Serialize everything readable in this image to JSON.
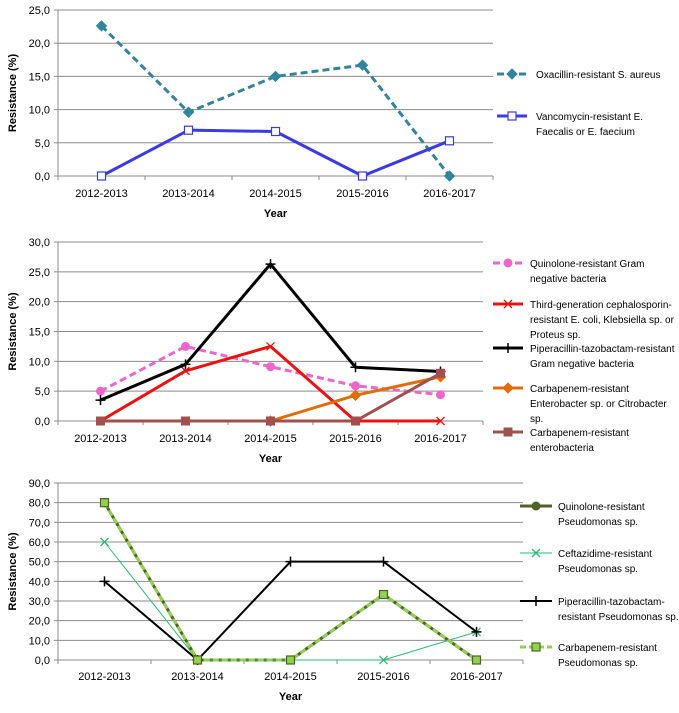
{
  "chart_data": [
    {
      "type": "line",
      "xlabel": "Year",
      "ylabel": "Resistance (%)",
      "ylim": [
        0,
        25
      ],
      "ytick_step": 5,
      "categories": [
        "2012-2013",
        "2013-2014",
        "2014-2015",
        "2015-2016",
        "2016-2017"
      ],
      "grid": true,
      "legend": "right",
      "series": [
        {
          "name": "Oxacillin-resistant S. aureus",
          "legend_lines": [
            "Oxacillin-resistant S. aureus"
          ],
          "values": [
            22.6,
            9.6,
            15.0,
            16.7,
            0.0
          ],
          "color": "#31849B",
          "dash": "7,4",
          "width": 3,
          "marker": "diamond"
        },
        {
          "name": "Vancomycin-resistant E. Faecalis or E. faecium",
          "legend_lines": [
            "Vancomycin-resistant E.",
            "Faecalis or E. faecium"
          ],
          "values": [
            0.0,
            6.9,
            6.7,
            0.0,
            5.3
          ],
          "color": "#3A3AE6",
          "dash": "",
          "width": 3,
          "marker": "square-open"
        }
      ]
    },
    {
      "type": "line",
      "xlabel": "Year",
      "ylabel": "Resistance (%)",
      "ylim": [
        0,
        30
      ],
      "ytick_step": 5,
      "categories": [
        "2012-2013",
        "2013-2014",
        "2014-2015",
        "2015-2016",
        "2016-2017"
      ],
      "grid": true,
      "legend": "right",
      "series": [
        {
          "name": "Quinolone-resistant Gram negative bacteria",
          "legend_lines": [
            "Quinolone-resistant Gram",
            "negative bacteria"
          ],
          "values": [
            5.0,
            12.5,
            9.1,
            5.9,
            4.4
          ],
          "color": "#EE66CC",
          "dash": "7,4",
          "width": 3,
          "marker": "circle"
        },
        {
          "name": "Third-generation cephalosporin-resistant E. coli, Klebsiella sp. or Proteus sp.",
          "legend_lines": [
            "Third-generation cephalosporin-",
            "resistant E. coli, Klebsiella sp. or",
            "Proteus sp."
          ],
          "values": [
            0.0,
            8.4,
            12.5,
            0.0,
            0.0
          ],
          "color": "#EE1111",
          "dash": "",
          "width": 3,
          "marker": "x"
        },
        {
          "name": "Piperacillin-tazobactam-resistant Gram negative bacteria",
          "legend_lines": [
            "Piperacillin-tazobactam-resistant",
            "Gram negative bacteria"
          ],
          "values": [
            3.5,
            9.5,
            26.3,
            9.0,
            8.3
          ],
          "color": "#000000",
          "dash": "",
          "width": 3,
          "marker": "plus"
        },
        {
          "name": "Carbapenem-resistant Enterobacter sp. or Citrobacter sp.",
          "legend_lines": [
            "Carbapenem-resistant",
            "Enterobacter sp. or Citrobacter",
            "sp."
          ],
          "values": [
            null,
            null,
            0.0,
            4.3,
            7.4
          ],
          "color": "#E36C0A",
          "dash": "",
          "width": 3,
          "marker": "diamond"
        },
        {
          "name": "Carbapenem-resistant enterobacteria",
          "legend_lines": [
            "Carbapenem-resistant",
            "enterobacteria"
          ],
          "values": [
            0.0,
            0.0,
            0.0,
            0.0,
            8.0
          ],
          "color": "#A0504D",
          "dash": "",
          "width": 3,
          "marker": "square"
        }
      ]
    },
    {
      "type": "line",
      "xlabel": "Year",
      "ylabel": "Resistance (%)",
      "ylim": [
        0,
        90
      ],
      "ytick_step": 10,
      "categories": [
        "2012-2013",
        "2013-2014",
        "2014-2015",
        "2015-2016",
        "2016-2017"
      ],
      "grid": true,
      "legend": "right",
      "series": [
        {
          "name": "Quinolone-resistant Pseudomonas sp.",
          "legend_lines": [
            "Quinolone-resistant",
            "Pseudomonas sp."
          ],
          "values": [
            80.0,
            0.0,
            0.0,
            33.3,
            0.0
          ],
          "color": "#4F6228",
          "dash": "",
          "width": 3,
          "marker": "circle"
        },
        {
          "name": "Ceftazidime-resistant Pseudomonas sp.",
          "legend_lines": [
            "Ceftazidime-resistant",
            "Pseudomonas sp."
          ],
          "values": [
            60.0,
            0.0,
            0.0,
            0.0,
            14.3
          ],
          "color": "#2EB872",
          "dash": "",
          "width": 1,
          "marker": "x"
        },
        {
          "name": "Piperacillin-tazobactam-resistant Pseudomonas sp.",
          "legend_lines": [
            "Piperacillin-tazobactam-",
            "resistant Pseudomonas sp."
          ],
          "values": [
            40.0,
            0.0,
            50.0,
            50.0,
            14.3
          ],
          "color": "#000000",
          "dash": "",
          "width": 2,
          "marker": "plus"
        },
        {
          "name": "Carbapenem-resistant Pseudomonas sp.",
          "legend_lines": [
            "Carbapenem-resistant",
            "Pseudomonas sp."
          ],
          "values": [
            80.0,
            0.0,
            0.0,
            33.3,
            0.0
          ],
          "color": "#92D050",
          "dash": "6,3",
          "width": 3,
          "marker": "square-fill"
        }
      ]
    }
  ]
}
